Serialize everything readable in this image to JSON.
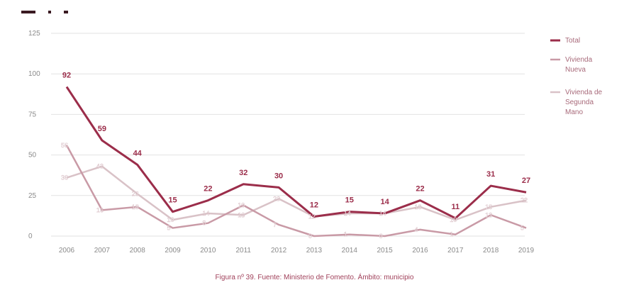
{
  "caption": "Figura nº 39. Fuente: Ministerio de Fomento. Ámbito: municipio",
  "colors": {
    "total": "#9b2d4a",
    "nueva": "#c99aa6",
    "segunda": "#d9c2c7",
    "grid": "#e2e2e2",
    "ticks": "#8a8a8a"
  },
  "chart_data": {
    "type": "line",
    "categories": [
      "2006",
      "2007",
      "2008",
      "2009",
      "2010",
      "2011",
      "2012",
      "2013",
      "2014",
      "2015",
      "2016",
      "2017",
      "2018",
      "2019"
    ],
    "ylim": [
      0,
      125
    ],
    "yticks": [
      0,
      25,
      50,
      75,
      100,
      125
    ],
    "grid": true,
    "legend_position": "right",
    "series": [
      {
        "name": "Total",
        "values": [
          92,
          59,
          44,
          15,
          22,
          32,
          30,
          12,
          15,
          14,
          22,
          11,
          31,
          27
        ],
        "labels": [
          "92",
          "59",
          "44",
          "15",
          "22",
          "32",
          "30",
          "12",
          "15",
          "14",
          "22",
          "11",
          "31",
          "27"
        ]
      },
      {
        "name": "Vivienda Nueva",
        "values": [
          56,
          16,
          18,
          5,
          8,
          19,
          7,
          0,
          1,
          0,
          4,
          1,
          13,
          5
        ],
        "labels": [
          "56",
          "16",
          "18",
          "5",
          "8",
          "19",
          "7",
          "0",
          "1",
          "0",
          "4",
          "1",
          "13",
          "5"
        ]
      },
      {
        "name": "Vivienda de Segunda Mano",
        "values": [
          36,
          43,
          26,
          10,
          14,
          13,
          23,
          12,
          14,
          14,
          18,
          10,
          18,
          22
        ],
        "labels": [
          "36",
          "43",
          "26",
          "10",
          "14",
          "13",
          "23",
          "12",
          "14",
          "14",
          "18",
          "10",
          "18",
          "22"
        ]
      }
    ]
  }
}
